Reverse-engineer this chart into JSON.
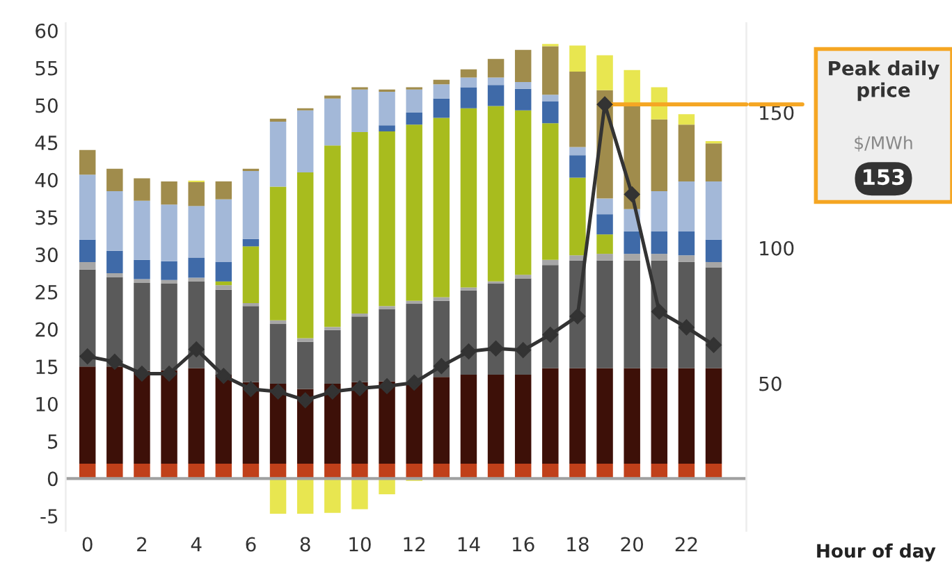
{
  "chart_data": {
    "type": "bar",
    "stacked": true,
    "xlabel": "Hour of day",
    "categories": [
      "0",
      null,
      "2",
      null,
      "4",
      null,
      "6",
      null,
      "8",
      null,
      "10",
      null,
      "12",
      null,
      "14",
      null,
      "16",
      null,
      "18",
      null,
      "20",
      null,
      "22",
      null
    ],
    "series": [
      {
        "color": "#c0401a",
        "values": [
          2,
          2,
          2,
          2,
          2,
          2,
          2,
          2,
          2,
          2,
          2,
          2,
          2,
          2,
          2,
          2,
          2,
          2,
          2,
          2,
          2,
          2,
          2,
          2
        ]
      },
      {
        "color": "#3d1008",
        "values": [
          13,
          13,
          12.4,
          12.5,
          12.8,
          11.9,
          10.9,
          10.7,
          10,
          10.7,
          10.9,
          11,
          10.9,
          11.6,
          11.9,
          11.9,
          11.9,
          12.8,
          12.8,
          12.8,
          12.8,
          12.8,
          12.8,
          12.8
        ]
      },
      {
        "color": "#5a5a5a",
        "values": [
          13,
          12,
          11.8,
          11.6,
          11.6,
          11.4,
          10.2,
          8,
          6.3,
          7.2,
          8.8,
          9.7,
          10.5,
          10.2,
          11.3,
          12.2,
          12.9,
          13.8,
          14.4,
          14.4,
          14.4,
          14.4,
          14.2,
          13.5
        ]
      },
      {
        "color": "#a6a6a6",
        "values": [
          1,
          0.5,
          0.5,
          0.5,
          0.5,
          0.6,
          0.4,
          0.5,
          0.5,
          0.4,
          0.4,
          0.4,
          0.4,
          0.5,
          0.4,
          0.3,
          0.5,
          0.7,
          0.7,
          0.9,
          0.9,
          0.9,
          0.9,
          0.7
        ]
      },
      {
        "color": "#a8bc1e",
        "values": [
          0,
          0,
          0,
          0,
          0,
          0.5,
          7.6,
          17.9,
          22.2,
          24.3,
          24.3,
          23.4,
          23.6,
          24,
          24,
          23.5,
          22,
          18.3,
          10.4,
          2.6,
          0,
          0,
          0,
          0
        ]
      },
      {
        "color": "#3f6aa8",
        "values": [
          3,
          3,
          2.6,
          2.5,
          2.7,
          2.6,
          1,
          0,
          0,
          0,
          0,
          0.8,
          1.6,
          2.6,
          2.8,
          2.8,
          2.9,
          2.9,
          3,
          2.7,
          3,
          3,
          3.2,
          3
        ]
      },
      {
        "color": "#a3b8d8",
        "values": [
          8.7,
          8,
          7.9,
          7.6,
          6.9,
          8.4,
          9.1,
          8.7,
          8.3,
          6.3,
          5.7,
          4.5,
          3.1,
          1.9,
          1.3,
          1,
          0.9,
          0.9,
          1.1,
          2.1,
          3,
          5.4,
          6.7,
          7.8
        ]
      },
      {
        "color": "#a08c4c",
        "values": [
          3.3,
          3,
          3,
          3.1,
          3.2,
          2.4,
          0.3,
          0.4,
          0.3,
          0.4,
          0.3,
          0.3,
          0.3,
          0.6,
          1.1,
          2.5,
          4.3,
          6.5,
          10.1,
          14.5,
          14,
          9.6,
          7.6,
          5.1
        ]
      },
      {
        "color": "#e8e650",
        "values": [
          0,
          0,
          0,
          0,
          0.2,
          0,
          0,
          -4.7,
          -4.7,
          -4.6,
          -4.1,
          -2.1,
          -0.3,
          0,
          0,
          0,
          0,
          0.3,
          3.5,
          4.7,
          4.6,
          4.3,
          1.4,
          0.3
        ]
      },
      {
        "type": "line",
        "axis": "y2",
        "color": "#333333",
        "marker": "diamond",
        "values": [
          60,
          58,
          53.6,
          53.6,
          62.6,
          52.8,
          47.9,
          47,
          43.8,
          47,
          48.2,
          49,
          50.3,
          56.4,
          61.8,
          62.9,
          62.3,
          68,
          74.8,
          153,
          119.8,
          76.5,
          70.7,
          64.2
        ]
      }
    ],
    "ylim": [
      -7,
      61
    ],
    "yticks": [
      -5,
      0,
      5,
      10,
      15,
      20,
      25,
      30,
      35,
      40,
      45,
      50,
      55,
      60
    ],
    "y2lim": [
      -4.4,
      183
    ],
    "y2ticks": [
      50,
      100,
      150
    ],
    "ref_lines": [
      {
        "axis": "y",
        "value": 0,
        "color": "#a0a0a0"
      },
      {
        "axis": "y2",
        "value": 153,
        "color": "#f5a623"
      }
    ],
    "annotations": [
      "Peak daily price",
      "$/MWh",
      "153"
    ],
    "grid": false
  }
}
